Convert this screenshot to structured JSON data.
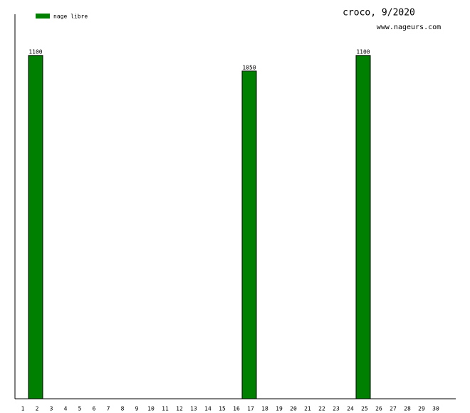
{
  "chart_data": {
    "type": "bar",
    "title": "croco, 9/2020",
    "subtitle": "www.nageurs.com",
    "categories": [
      "1",
      "2",
      "3",
      "4",
      "5",
      "6",
      "7",
      "8",
      "9",
      "10",
      "11",
      "12",
      "13",
      "14",
      "15",
      "16",
      "17",
      "18",
      "19",
      "20",
      "21",
      "22",
      "23",
      "24",
      "25",
      "26",
      "27",
      "28",
      "29",
      "30"
    ],
    "series": [
      {
        "name": "nage libre",
        "color": "#008000",
        "values": [
          null,
          1100,
          null,
          null,
          null,
          null,
          null,
          null,
          null,
          null,
          null,
          null,
          null,
          null,
          null,
          null,
          1050,
          null,
          null,
          null,
          null,
          null,
          null,
          null,
          1100,
          null,
          null,
          null,
          null,
          null
        ]
      }
    ],
    "ylim": [
      0,
      1232
    ]
  }
}
